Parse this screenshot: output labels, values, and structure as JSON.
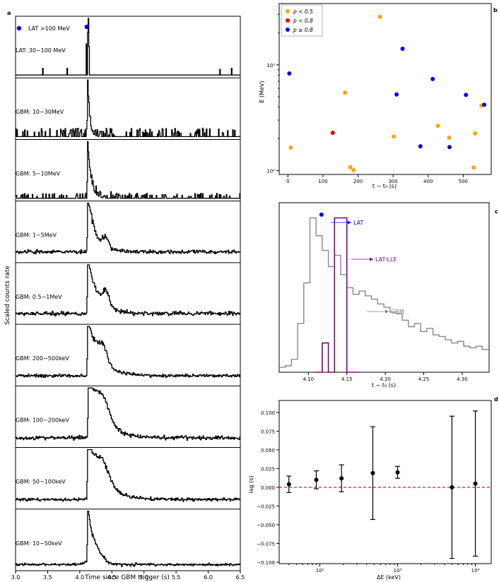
{
  "panel_letters": [
    "a",
    "b",
    "c",
    "d"
  ],
  "colors": {
    "trace": "#000000",
    "lat": "#0000ee",
    "orange": "#ffa500",
    "red": "#ee0000",
    "gbm_step": "#808080",
    "lle_step": "#800080",
    "zero_line": "#dd0000"
  },
  "chart_data": [
    {
      "id": "a",
      "type": "line",
      "title": "",
      "xlabel": "Time since GBM trigger (s)",
      "ylabel": "Scaled counts rate",
      "xlim": [
        3.0,
        6.5
      ],
      "xticks": [
        "3.0",
        "3.5",
        "4.0",
        "4.5",
        "5.0",
        "5.5",
        "6.0",
        "6.5"
      ],
      "lat_legend": "LAT >100 MeV",
      "lat_marker": {
        "x": 4.11,
        "label": "LAT >100 MeV"
      },
      "series": [
        {
          "name": "LAT: 30−100 MeV",
          "kind": "spikes",
          "peak": 4.12,
          "baseline": 0.0,
          "events": [
            [
              3.42,
              0.12
            ],
            [
              3.8,
              0.12
            ],
            [
              4.1,
              0.55
            ],
            [
              4.115,
              0.75
            ],
            [
              4.125,
              1.0
            ],
            [
              4.135,
              0.9
            ],
            [
              4.145,
              0.5
            ],
            [
              6.18,
              0.1
            ],
            [
              6.36,
              0.12
            ]
          ]
        },
        {
          "name": "GBM: 10−30MeV",
          "kind": "sparse",
          "peak": 4.12,
          "amp": 1.0,
          "decay": 0.03,
          "noise": 0.1,
          "baseline": 0.0,
          "density": 0.28
        },
        {
          "name": "GBM: 5−10MeV",
          "kind": "sparse",
          "peak": 4.12,
          "amp": 1.0,
          "decay": 0.05,
          "noise": 0.06,
          "baseline": 0.0,
          "density": 0.22
        },
        {
          "name": "GBM: 1−5MeV",
          "kind": "noisy",
          "peak": 4.12,
          "amp": 1.0,
          "decay": 0.12,
          "noise": 0.05,
          "baseline": 0.14,
          "bump": [
            4.4,
            0.18,
            0.06
          ]
        },
        {
          "name": "GBM: 0.5−1MeV",
          "kind": "noisy",
          "peak": 4.12,
          "amp": 1.0,
          "decay": 0.15,
          "noise": 0.05,
          "baseline": 0.14,
          "bump": [
            4.4,
            0.25,
            0.08
          ]
        },
        {
          "name": "GBM: 200−500keV",
          "kind": "noisy",
          "peak": 4.12,
          "amp": 1.0,
          "decay": 0.18,
          "noise": 0.04,
          "baseline": 0.13,
          "bump": [
            4.35,
            0.3,
            0.1
          ]
        },
        {
          "name": "GBM: 100−200keV",
          "kind": "noisy",
          "peak": 4.13,
          "amp": 1.0,
          "decay": 0.22,
          "noise": 0.05,
          "baseline": 0.12,
          "bump": [
            4.35,
            0.4,
            0.15
          ]
        },
        {
          "name": "GBM: 50−100keV",
          "kind": "noisy",
          "peak": 4.12,
          "amp": 1.0,
          "decay": 0.22,
          "noise": 0.04,
          "baseline": 0.12,
          "bump": [
            4.35,
            0.35,
            0.15
          ]
        },
        {
          "name": "GBM: 10−50keV",
          "kind": "noisy",
          "peak": 4.12,
          "amp": 1.0,
          "decay": 0.08,
          "noise": 0.03,
          "baseline": 0.06,
          "bump": [
            4.25,
            0.15,
            0.15
          ]
        }
      ]
    },
    {
      "id": "b",
      "type": "scatter",
      "title": "",
      "xlabel": "t − t₀ (s)",
      "ylabel": "E (MeV)",
      "xlim": [
        -25,
        580
      ],
      "ylim": [
        92,
        3800
      ],
      "yscale": "log",
      "xticks": [
        "0",
        "100",
        "200",
        "300",
        "400",
        "500"
      ],
      "yticks": [
        "10²",
        "10³"
      ],
      "legend_position": "top-left",
      "series": [
        {
          "name": "p < 0.5",
          "color": "#ffa500",
          "points": [
            [
              8,
              165
            ],
            [
              163,
              545
            ],
            [
              178,
              108
            ],
            [
              187,
              101
            ],
            [
              263,
              2850
            ],
            [
              302,
              210
            ],
            [
              428,
              265
            ],
            [
              460,
              205
            ],
            [
              530,
              107
            ],
            [
              534,
              225
            ],
            [
              552,
              412
            ]
          ]
        },
        {
          "name": "p < 0.8",
          "color": "#ee0000",
          "points": [
            [
              128,
              228
            ]
          ]
        },
        {
          "name": "p ≥ 0.8",
          "color": "#0000ee",
          "points": [
            [
              4,
              830
            ],
            [
              310,
              525
            ],
            [
              327,
              1420
            ],
            [
              378,
              170
            ],
            [
              413,
              735
            ],
            [
              461,
              167
            ],
            [
              508,
              520
            ],
            [
              560,
              420
            ]
          ]
        }
      ]
    },
    {
      "id": "c",
      "type": "line",
      "title": "",
      "xlabel": "t − t₀ (s)",
      "xlim": [
        4.062,
        4.335
      ],
      "xticks": [
        "4.10",
        "4.15",
        "4.20",
        "4.25",
        "4.30"
      ],
      "annotations": [
        "LAT",
        "LAT-LLE",
        "GBM"
      ],
      "lat_point": {
        "x": 4.117,
        "y": 0.97
      },
      "series": [
        {
          "name": "GBM",
          "color": "#808080",
          "edges": [
            4.062,
            4.07,
            4.078,
            4.086,
            4.094,
            4.102,
            4.11,
            4.118,
            4.126,
            4.134,
            4.142,
            4.15,
            4.158,
            4.166,
            4.174,
            4.182,
            4.19,
            4.198,
            4.206,
            4.214,
            4.222,
            4.23,
            4.238,
            4.246,
            4.254,
            4.262,
            4.27,
            4.278,
            4.286,
            4.294,
            4.302,
            4.31,
            4.318,
            4.326,
            4.335
          ],
          "values": [
            0.03,
            0.04,
            0.08,
            0.3,
            0.55,
            0.95,
            0.84,
            0.75,
            0.65,
            0.72,
            0.6,
            0.52,
            0.48,
            0.5,
            0.47,
            0.45,
            0.42,
            0.4,
            0.37,
            0.36,
            0.32,
            0.28,
            0.3,
            0.25,
            0.27,
            0.23,
            0.22,
            0.2,
            0.18,
            0.19,
            0.16,
            0.15,
            0.16,
            0.14
          ]
        },
        {
          "name": "LAT-LLE",
          "color": "#800080",
          "edges": [
            4.11,
            4.118,
            4.126,
            4.134,
            4.142,
            4.15,
            4.158,
            4.166
          ],
          "values": [
            0.0,
            0.18,
            0.0,
            0.95,
            0.95,
            0.0,
            0.0
          ]
        }
      ]
    },
    {
      "id": "d",
      "type": "scatter",
      "title": "",
      "xlabel": "ΔE (keV)",
      "ylabel": "lag (s)",
      "xscale": "log",
      "xlim": [
        30,
        16000
      ],
      "ylim": [
        -0.102,
        0.116
      ],
      "xticks": [
        "10²",
        "10³",
        "10⁴"
      ],
      "yticks": [
        "−0.100",
        "−0.075",
        "−0.050",
        "−0.025",
        "0.000",
        "0.025",
        "0.050",
        "0.075",
        "0.100"
      ],
      "zero_line": 0.0,
      "points": [
        {
          "x": 40,
          "y": 0.004,
          "err": 0.011
        },
        {
          "x": 90,
          "y": 0.01,
          "err": 0.012
        },
        {
          "x": 190,
          "y": 0.012,
          "err": 0.018
        },
        {
          "x": 480,
          "y": 0.019,
          "err": 0.062
        },
        {
          "x": 1000,
          "y": 0.02,
          "err": 0.008
        },
        {
          "x": 5000,
          "y": 0.0,
          "err": 0.095
        },
        {
          "x": 10000,
          "y": 0.005,
          "err": 0.097
        }
      ]
    }
  ]
}
